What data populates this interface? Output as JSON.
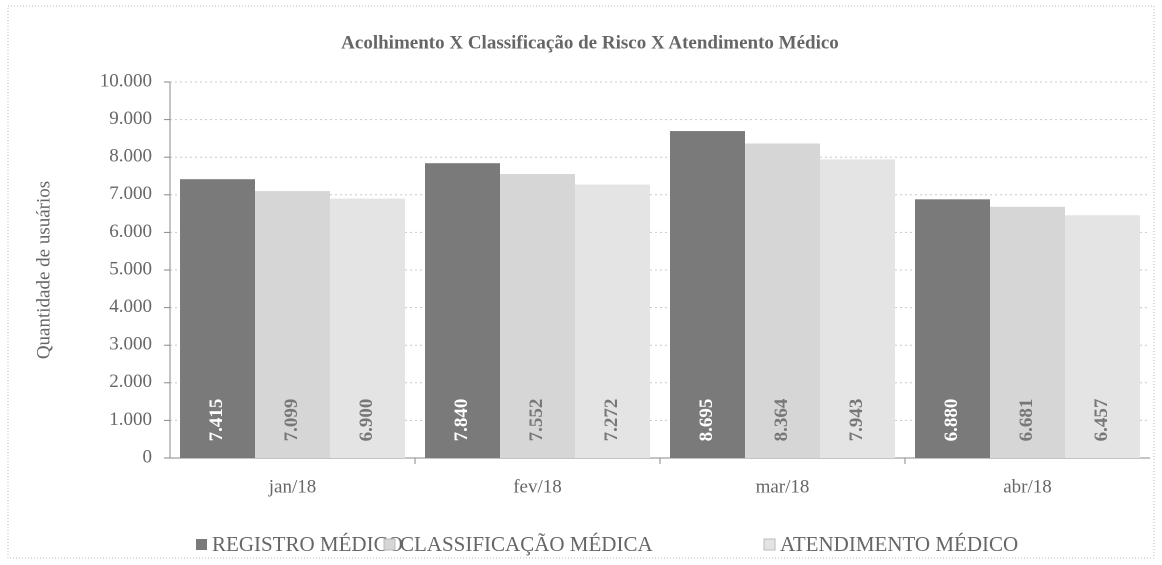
{
  "chart_data": {
    "type": "bar",
    "title": "Acolhimento  X Classificação de Risco X Atendimento  Médico",
    "y_label": "Quantidade  de usuários",
    "categories": [
      "jan/18",
      "fev/18",
      "mar/18",
      "abr/18"
    ],
    "series": [
      {
        "name": "REGISTRO MÉDICO",
        "color": "#7a7a7a",
        "values": [
          7415,
          7840,
          8695,
          6880
        ],
        "value_labels": [
          "7.415",
          "7.840",
          "8.695",
          "6.880"
        ]
      },
      {
        "name": "CLASSIFICAÇÃO MÉDICA",
        "color": "#d6d6d6",
        "values": [
          7099,
          7552,
          8364,
          6681
        ],
        "value_labels": [
          "7.099",
          "7.552",
          "8.364",
          "6.681"
        ]
      },
      {
        "name": "ATENDIMENTO MÉDICO",
        "color": "#e4e4e4",
        "values": [
          6900,
          7272,
          7943,
          6457
        ],
        "value_labels": [
          "6.900",
          "7.272",
          "7.943",
          "6.457"
        ]
      }
    ],
    "ylim": [
      0,
      10000
    ],
    "yticks": [
      {
        "value": 0,
        "label": "0"
      },
      {
        "value": 1000,
        "label": "1.000"
      },
      {
        "value": 2000,
        "label": "2.000"
      },
      {
        "value": 3000,
        "label": "3.000"
      },
      {
        "value": 4000,
        "label": "4.000"
      },
      {
        "value": 5000,
        "label": "5.000"
      },
      {
        "value": 6000,
        "label": "6.000"
      },
      {
        "value": 7000,
        "label": "7.000"
      },
      {
        "value": 8000,
        "label": "8.000"
      },
      {
        "value": 9000,
        "label": "9.000"
      },
      {
        "value": 10000,
        "label": "10.000"
      }
    ],
    "grid": true,
    "legend": "bottom"
  }
}
